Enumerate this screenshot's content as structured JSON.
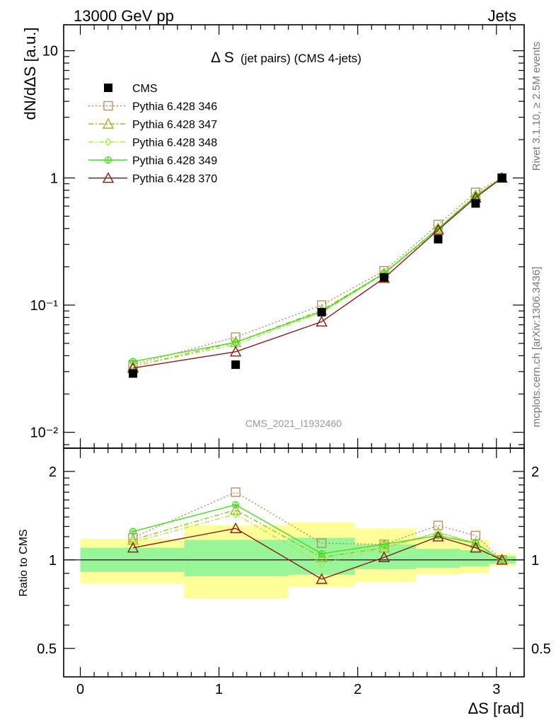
{
  "header": {
    "left": "13000 GeV pp",
    "right": "Jets"
  },
  "side_text": {
    "rivet": "Rivet 3.1.10, ≥ 2.5M events",
    "mcplots": "mcplots.cern.ch [arXiv:1306.3436]"
  },
  "chart_data": {
    "type": "line",
    "title_main": "Δ S",
    "title_sub": "(jet pairs) (CMS 4-jets)",
    "analysis_label": "CMS_2021_I1932460",
    "xlabel": "ΔS [rad]",
    "ylabel": "dN/dΔS [a.u.]",
    "ratio_ylabel": "Ratio to CMS",
    "xlim": [
      -0.12,
      3.2
    ],
    "ylim": [
      0.0075,
      16
    ],
    "yscale": "log",
    "ratio_ylim": [
      0.4,
      2.4
    ],
    "ratio_yscale": "log",
    "x_ticks": [
      "0",
      "1",
      "2",
      "3"
    ],
    "y_ticks": [
      "10",
      "1",
      "10⁻¹",
      "10⁻²"
    ],
    "ratio_ticks": [
      "2",
      "1",
      "0.5"
    ],
    "bin_edges": [
      0,
      0.75,
      1.5,
      1.98,
      2.42,
      2.74,
      2.95,
      3.14
    ],
    "bin_centers": [
      0.38,
      1.12,
      1.74,
      2.19,
      2.58,
      2.85,
      3.04
    ],
    "data": {
      "name": "CMS",
      "values": [
        0.029,
        0.034,
        0.088,
        0.165,
        0.33,
        0.63,
        1.0
      ]
    },
    "uncertainty_bands": {
      "inner": [
        [
          0.91,
          1.1
        ],
        [
          0.88,
          1.17
        ],
        [
          0.89,
          1.19
        ],
        [
          0.93,
          1.13
        ],
        [
          0.94,
          1.09
        ],
        [
          0.95,
          1.08
        ],
        [
          0.97,
          1.03
        ]
      ],
      "outer": [
        [
          0.83,
          1.18
        ],
        [
          0.74,
          1.31
        ],
        [
          0.81,
          1.34
        ],
        [
          0.84,
          1.28
        ],
        [
          0.89,
          1.19
        ],
        [
          0.9,
          1.17
        ],
        [
          0.95,
          1.05
        ]
      ]
    },
    "series": [
      {
        "name": "Pythia 6.428 346",
        "color": "#b8895a",
        "dash": "2,3",
        "marker": "square",
        "values": [
          0.034,
          0.056,
          0.1,
          0.186,
          0.43,
          0.77,
          1.0
        ],
        "ratio": [
          1.19,
          1.7,
          1.14,
          1.13,
          1.31,
          1.21,
          1.0
        ]
      },
      {
        "name": "Pythia 6.428 347",
        "color": "#a0b822",
        "dash": "7,3,2,3",
        "marker": "triangle",
        "values": [
          0.033,
          0.051,
          0.091,
          0.178,
          0.4,
          0.73,
          1.0
        ],
        "ratio": [
          1.17,
          1.48,
          1.02,
          1.1,
          1.24,
          1.14,
          1.0
        ]
      },
      {
        "name": "Pythia 6.428 348",
        "color": "#a8e84a",
        "dash": "7,3,2,3",
        "marker": "diamond",
        "values": [
          0.033,
          0.049,
          0.087,
          0.176,
          0.39,
          0.72,
          1.0
        ],
        "ratio": [
          1.15,
          1.43,
          0.97,
          1.1,
          1.24,
          1.14,
          1.0
        ]
      },
      {
        "name": "Pythia 6.428 349",
        "color": "#44dd22",
        "dash": "",
        "marker": "cross",
        "values": [
          0.036,
          0.051,
          0.089,
          0.178,
          0.4,
          0.72,
          1.0
        ],
        "ratio": [
          1.25,
          1.54,
          1.05,
          1.13,
          1.21,
          1.14,
          1.0
        ]
      },
      {
        "name": "Pythia 6.428 370",
        "color": "#8b1a1a",
        "dash": "",
        "marker": "triangle",
        "values": [
          0.032,
          0.043,
          0.074,
          0.163,
          0.39,
          0.7,
          1.0
        ],
        "ratio": [
          1.1,
          1.28,
          0.86,
          1.02,
          1.2,
          1.1,
          1.0
        ]
      }
    ],
    "legend_placement": "top-left",
    "grid": false
  }
}
